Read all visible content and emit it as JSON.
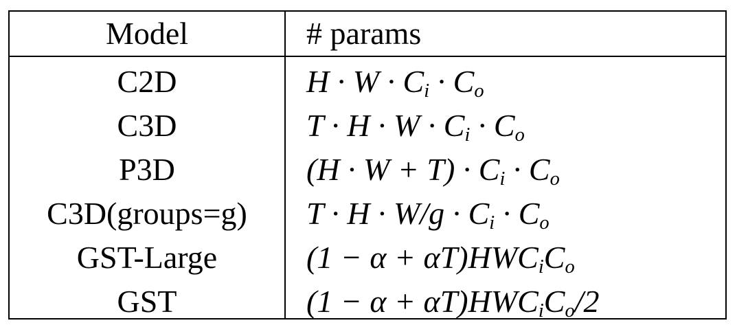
{
  "table": {
    "headers": [
      "Model",
      "# params"
    ],
    "rows": [
      {
        "model": "C2D",
        "params": "H · W · C_i · C_o"
      },
      {
        "model": "C3D",
        "params": "T · H · W · C_i · C_o"
      },
      {
        "model": "P3D",
        "params": "(H · W + T) · C_i · C_o"
      },
      {
        "model": "C3D(groups=g)",
        "params": "T · H · W/g · C_i · C_o"
      },
      {
        "model": "GST-Large",
        "params": "(1 − α + αT)HWC_iC_o"
      },
      {
        "model": "GST",
        "params": "(1 − α + αT)HWC_iC_o/2"
      }
    ]
  }
}
